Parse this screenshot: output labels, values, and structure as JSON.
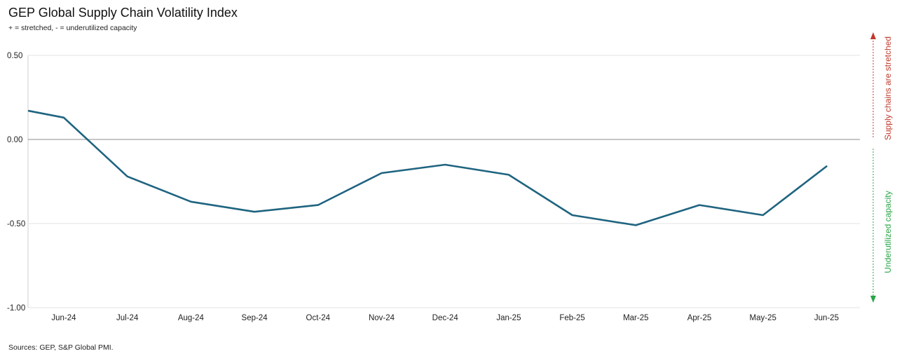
{
  "chart_data": {
    "type": "line",
    "title": "GEP Global Supply Chain Volatility Index",
    "subtitle": "+ = stretched, - = underutilized capacity",
    "source": "Sources: GEP, S&P Global PMI.",
    "y_tick_labels": [
      "0.50",
      "0.00",
      "-0.50",
      "-1.00"
    ],
    "y_ticks": [
      0.5,
      0,
      -0.5,
      -1.0
    ],
    "ylim": [
      -1.0,
      0.5
    ],
    "x_tick_labels": [
      "Jun-24",
      "Jul-24",
      "Aug-24",
      "Sep-24",
      "Oct-24",
      "Nov-24",
      "Dec-24",
      "Jan-25",
      "Feb-25",
      "Mar-25",
      "Apr-25",
      "May-25",
      "Jun-25"
    ],
    "grid": true,
    "series": [
      {
        "x": [
          -0.55,
          0,
          1,
          2,
          3,
          4,
          5,
          6,
          7,
          8,
          9,
          10,
          11,
          12
        ],
        "values": [
          0.17,
          0.13,
          -0.22,
          -0.37,
          -0.43,
          -0.39,
          -0.2,
          -0.15,
          -0.21,
          -0.45,
          -0.51,
          -0.39,
          -0.45,
          -0.16
        ],
        "color": "#1f6480"
      }
    ],
    "annotations": {
      "upper": {
        "text": "Supply chains are stretched",
        "color": "#c0392b"
      },
      "lower": {
        "text": "Underutilized capacity",
        "color": "#27a546"
      }
    }
  }
}
